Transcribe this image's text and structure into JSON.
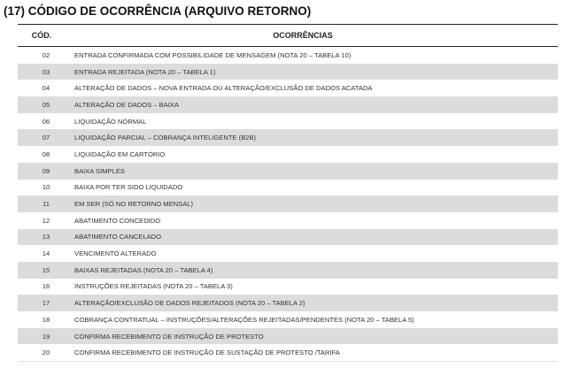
{
  "title": "(17) CÓDIGO DE OCORRÊNCIA (ARQUIVO RETORNO)",
  "columns": {
    "code": "CÓD.",
    "description": "OCORRÊNCIAS"
  },
  "shade_color": "#dcdcdc",
  "rows": [
    {
      "code": "02",
      "description": "ENTRADA CONFIRMADA COM POSSIBILIDADE DE MENSAGEM (NOTA 20 – TABELA 10)"
    },
    {
      "code": "03",
      "description": "ENTRADA REJEITADA (NOTA 20 – TABELA 1)"
    },
    {
      "code": "04",
      "description": "ALTERAÇÃO DE DADOS – NOVA ENTRADA OU ALTERAÇÃO/EXCLUSÃO DE DADOS ACATADA"
    },
    {
      "code": "05",
      "description": "ALTERAÇÃO DE DADOS – BAIXA"
    },
    {
      "code": "06",
      "description": "LIQUIDAÇÃO NORMAL"
    },
    {
      "code": "07",
      "description": "LIQUIDAÇÃO PARCIAL – COBRANÇA INTELIGENTE (B2B)"
    },
    {
      "code": "08",
      "description": "LIQUIDAÇÃO EM CARTÓRIO"
    },
    {
      "code": "09",
      "description": "BAIXA SIMPLES"
    },
    {
      "code": "10",
      "description": "BAIXA POR TER SIDO LIQUIDADO"
    },
    {
      "code": "11",
      "description": "EM SER (SÓ NO RETORNO MENSAL)"
    },
    {
      "code": "12",
      "description": "ABATIMENTO CONCEDIDO"
    },
    {
      "code": "13",
      "description": "ABATIMENTO CANCELADO"
    },
    {
      "code": "14",
      "description": "VENCIMENTO ALTERADO"
    },
    {
      "code": "15",
      "description": "BAIXAS REJEITADAS (NOTA 20 – TABELA 4)"
    },
    {
      "code": "16",
      "description": "INSTRUÇÕES REJEITADAS (NOTA 20 – TABELA 3)"
    },
    {
      "code": "17",
      "description": "ALTERAÇÃO/EXCLUSÃO DE DADOS REJEITADOS (NOTA 20 – TABELA 2)"
    },
    {
      "code": "18",
      "description": "COBRANÇA CONTRATUAL – INSTRUÇÕES/ALTERAÇÕES REJEITADAS/PENDENTES (NOTA 20 – TABELA 5)"
    },
    {
      "code": "19",
      "description": "CONFIRMA RECEBIMENTO DE INSTRUÇÃO DE PROTESTO"
    },
    {
      "code": "20",
      "description": "CONFIRMA RECEBIMENTO DE INSTRUÇÃO DE SUSTAÇÃO DE PROTESTO /TARIFA"
    }
  ]
}
